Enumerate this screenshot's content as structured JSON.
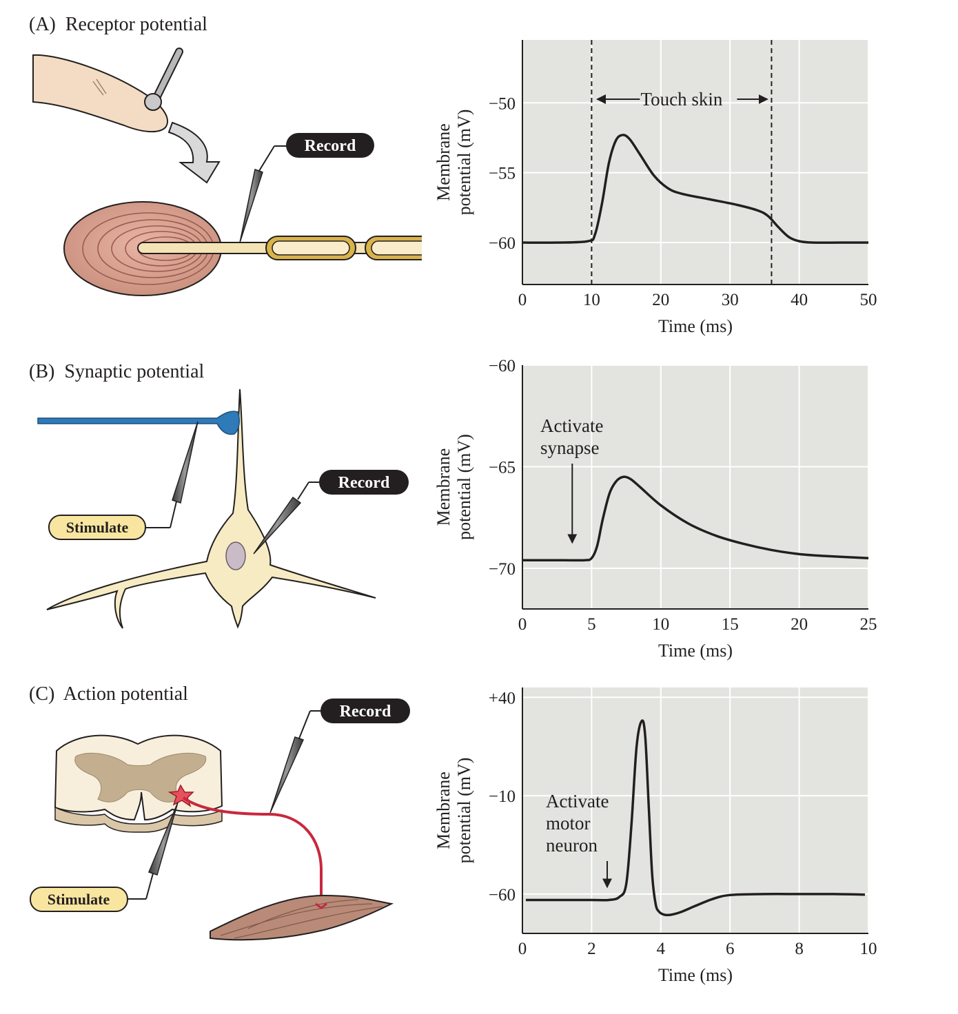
{
  "panels": [
    {
      "id": "A",
      "title": "(A)  Receptor potential",
      "record_label": "Record"
    },
    {
      "id": "B",
      "title": "(B)  Synaptic potential",
      "record_label": "Record",
      "stimulate_label": "Stimulate"
    },
    {
      "id": "C",
      "title": "(C)  Action potential",
      "record_label": "Record",
      "stimulate_label": "Stimulate"
    }
  ],
  "chart_data": [
    {
      "type": "line",
      "panel": "A",
      "xlabel": "Time (ms)",
      "ylabel": "Membrane potential (mV)",
      "ylabel_lines": [
        "Membrane",
        "potential (mV)"
      ],
      "xlim": [
        0,
        50
      ],
      "ylim": [
        -63,
        -45.5
      ],
      "xticks": [
        0,
        10,
        20,
        30,
        40,
        50
      ],
      "xtick_labels": [
        "0",
        "10",
        "20",
        "30",
        "40",
        "50"
      ],
      "yticks": [
        -50,
        -55,
        -60
      ],
      "ytick_labels": [
        "−50",
        "−55",
        "−60"
      ],
      "grid": true,
      "annotation": "Touch skin",
      "event_lines": [
        10,
        36
      ],
      "series": [
        {
          "x": [
            0,
            5,
            9.5,
            10.5,
            11.5,
            12.5,
            13.5,
            14.5,
            15.5,
            17,
            19,
            21,
            23,
            27,
            31,
            34,
            35.5,
            37,
            38.5,
            40,
            42,
            46,
            50
          ],
          "y": [
            -60,
            -60,
            -59.9,
            -59.4,
            -57.2,
            -54.3,
            -52.7,
            -52.3,
            -52.6,
            -53.7,
            -55.2,
            -56.1,
            -56.5,
            -56.9,
            -57.3,
            -57.7,
            -58.1,
            -58.9,
            -59.6,
            -59.9,
            -60,
            -60,
            -60
          ]
        }
      ]
    },
    {
      "type": "line",
      "panel": "B",
      "xlabel": "Time (ms)",
      "ylabel": "Membrane potential (mV)",
      "ylabel_lines": [
        "Membrane",
        "potential (mV)"
      ],
      "xlim": [
        0,
        25
      ],
      "ylim": [
        -72,
        -60
      ],
      "xticks": [
        0,
        5,
        10,
        15,
        20,
        25
      ],
      "xtick_labels": [
        "0",
        "5",
        "10",
        "15",
        "20",
        "25"
      ],
      "yticks": [
        -60,
        -65,
        -70
      ],
      "ytick_labels": [
        "−60",
        "−65",
        "−70"
      ],
      "grid": true,
      "annotation_lines": [
        "Activate",
        "synapse"
      ],
      "event_x": 3.6,
      "series": [
        {
          "x": [
            0,
            3,
            4.5,
            5,
            5.4,
            5.8,
            6.3,
            6.8,
            7.3,
            7.8,
            8.5,
            10,
            12,
            14,
            16,
            18,
            20,
            22,
            25
          ],
          "y": [
            -69.6,
            -69.6,
            -69.6,
            -69.5,
            -68.9,
            -67.6,
            -66.3,
            -65.7,
            -65.5,
            -65.6,
            -66,
            -66.9,
            -67.8,
            -68.4,
            -68.8,
            -69.1,
            -69.3,
            -69.4,
            -69.5
          ]
        }
      ]
    },
    {
      "type": "line",
      "panel": "C",
      "xlabel": "Time (ms)",
      "ylabel": "Membrane potential (mV)",
      "ylabel_lines": [
        "Membrane",
        "potential (mV)"
      ],
      "xlim": [
        0,
        10
      ],
      "ylim": [
        -80,
        45
      ],
      "xticks": [
        0,
        2,
        4,
        6,
        8,
        10
      ],
      "xtick_labels": [
        "0",
        "2",
        "4",
        "6",
        "8",
        "10"
      ],
      "yticks": [
        40,
        -10,
        -60
      ],
      "ytick_labels": [
        "+40",
        "−10",
        "−60"
      ],
      "grid": true,
      "annotation_lines": [
        "Activate",
        "motor",
        "neuron"
      ],
      "event_x": 2.45,
      "series": [
        {
          "x": [
            0.1,
            2,
            2.5,
            2.8,
            3.0,
            3.15,
            3.3,
            3.45,
            3.55,
            3.65,
            3.75,
            3.85,
            3.95,
            4.1,
            4.3,
            4.6,
            5,
            5.5,
            6,
            7,
            8,
            9,
            9.9
          ],
          "y": [
            -63,
            -63,
            -63,
            -61.5,
            -55,
            -25,
            15,
            28,
            20,
            -15,
            -50,
            -65,
            -69,
            -70.5,
            -70.5,
            -69,
            -66,
            -62.5,
            -60.5,
            -60,
            -60,
            -60,
            -60.3
          ]
        }
      ]
    }
  ]
}
